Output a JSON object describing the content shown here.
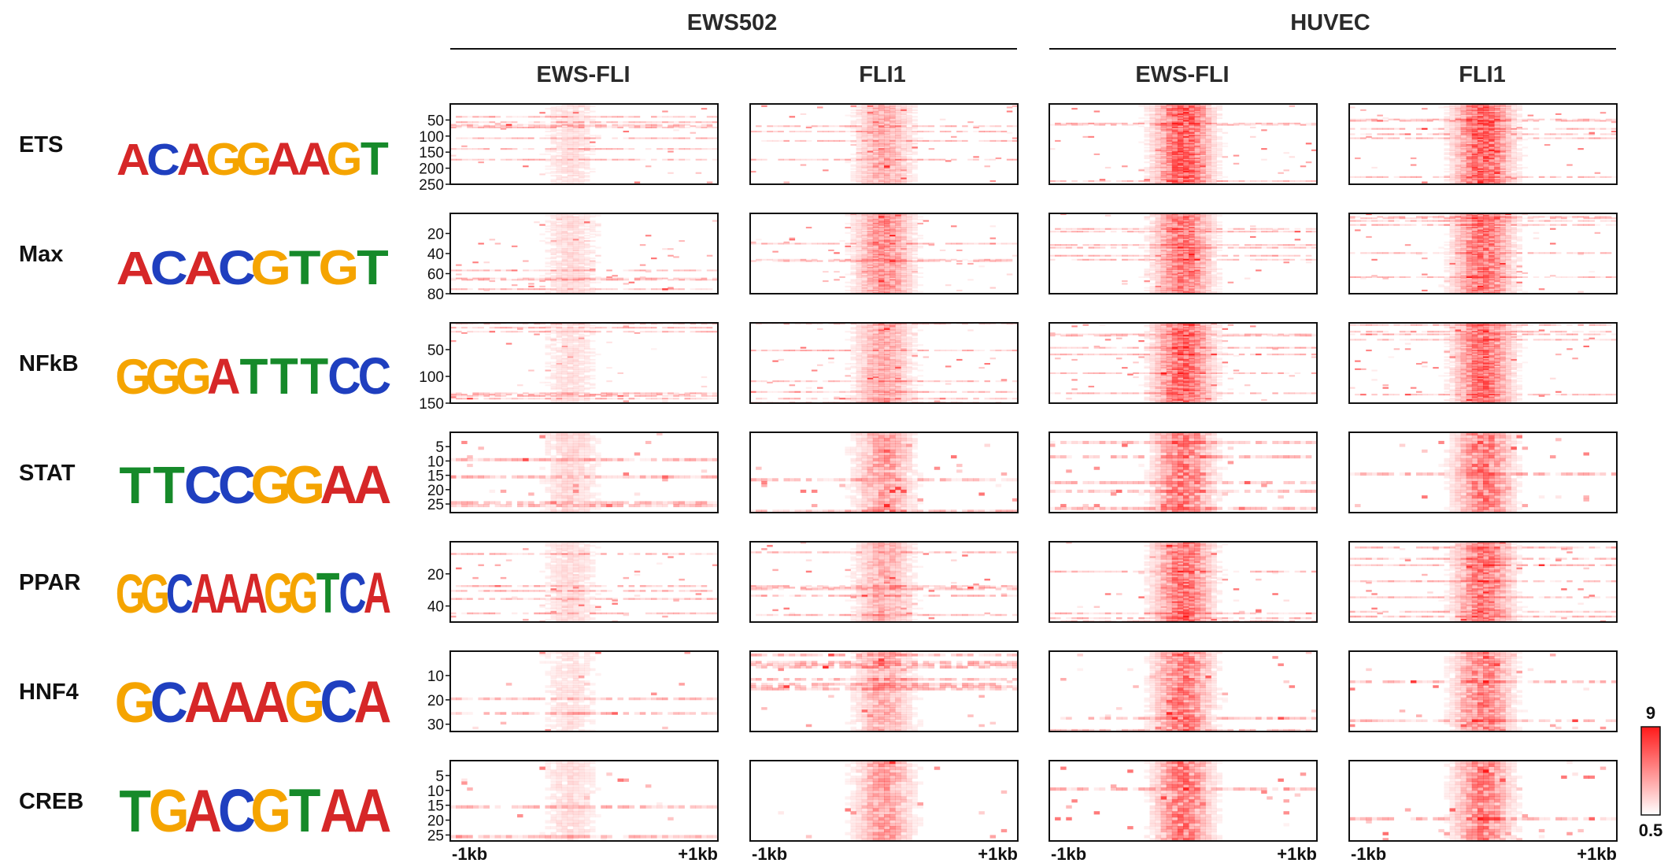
{
  "chart_data": {
    "type": "heatmap",
    "group_headers": [
      "EWS502",
      "HUVEC"
    ],
    "column_headers": [
      "EWS-FLI",
      "FLI1",
      "EWS-FLI",
      "FLI1"
    ],
    "column_groups": [
      0,
      0,
      1,
      1
    ],
    "x_tick_labels": [
      "-1kb",
      "+1kb"
    ],
    "colorbar": {
      "max_label": "9",
      "min_label": "0.5",
      "min": 0.5,
      "max": 9,
      "low_color": "#ffffff",
      "high_color": "#ff1a1a"
    },
    "rows": [
      {
        "name": "ETS",
        "logo": "ACAGGAAGT",
        "y_ticks": [
          50,
          100,
          150,
          200,
          250
        ],
        "n": 250,
        "intensity": [
          0.1,
          0.3,
          0.72,
          0.7
        ]
      },
      {
        "name": "Max",
        "logo": "ACACGTGT",
        "y_ticks": [
          20,
          40,
          60,
          80
        ],
        "n": 80,
        "intensity": [
          0.12,
          0.45,
          0.55,
          0.6
        ]
      },
      {
        "name": "NFkB",
        "logo": "GGGATTTCC",
        "y_ticks": [
          50,
          100,
          150
        ],
        "n": 150,
        "intensity": [
          0.1,
          0.32,
          0.65,
          0.62
        ]
      },
      {
        "name": "STAT",
        "logo": "TTCCGGAA",
        "y_ticks": [
          5,
          10,
          15,
          20,
          25
        ],
        "n": 28,
        "intensity": [
          0.15,
          0.4,
          0.6,
          0.6
        ]
      },
      {
        "name": "PPAR",
        "logo": "GGCAAAGGTCA",
        "y_ticks": [
          20,
          40
        ],
        "n": 50,
        "intensity": [
          0.12,
          0.3,
          0.62,
          0.58
        ]
      },
      {
        "name": "HNF4",
        "logo": "GCAAAGCA",
        "y_ticks": [
          10,
          20,
          30
        ],
        "n": 33,
        "intensity": [
          0.1,
          0.32,
          0.58,
          0.55
        ]
      },
      {
        "name": "CREB",
        "logo": "TGACGTAA",
        "y_ticks": [
          5,
          10,
          15,
          20,
          25
        ],
        "n": 27,
        "intensity": [
          0.12,
          0.42,
          0.58,
          0.55
        ]
      }
    ]
  }
}
